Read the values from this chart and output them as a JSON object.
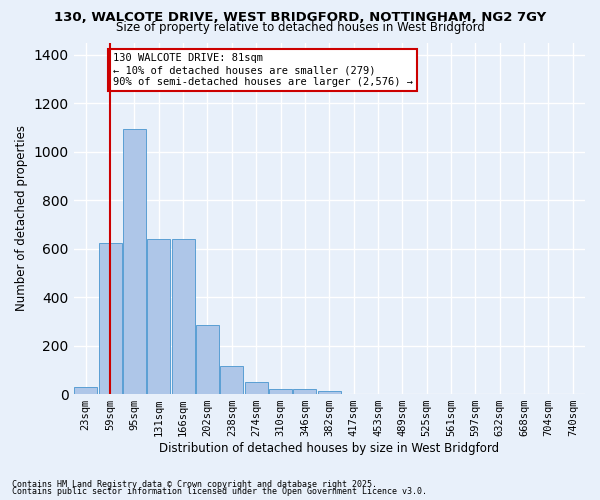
{
  "title1": "130, WALCOTE DRIVE, WEST BRIDGFORD, NOTTINGHAM, NG2 7GY",
  "title2": "Size of property relative to detached houses in West Bridgford",
  "xlabel": "Distribution of detached houses by size in West Bridgford",
  "ylabel": "Number of detached properties",
  "bins": [
    "23sqm",
    "59sqm",
    "95sqm",
    "131sqm",
    "166sqm",
    "202sqm",
    "238sqm",
    "274sqm",
    "310sqm",
    "346sqm",
    "382sqm",
    "417sqm",
    "453sqm",
    "489sqm",
    "525sqm",
    "561sqm",
    "597sqm",
    "632sqm",
    "668sqm",
    "704sqm",
    "740sqm"
  ],
  "bar_heights": [
    30,
    625,
    1095,
    640,
    640,
    285,
    115,
    48,
    20,
    20,
    12,
    0,
    0,
    0,
    0,
    0,
    0,
    0,
    0,
    0,
    0
  ],
  "bar_color": "#aec6e8",
  "bar_edge_color": "#5a9fd4",
  "ylim": [
    0,
    1450
  ],
  "yticks": [
    0,
    200,
    400,
    600,
    800,
    1000,
    1200,
    1400
  ],
  "vline_x": 1.0,
  "vline_color": "#cc0000",
  "annotation_text": "130 WALCOTE DRIVE: 81sqm\n← 10% of detached houses are smaller (279)\n90% of semi-detached houses are larger (2,576) →",
  "annotation_box_color": "#ffffff",
  "annotation_border_color": "#cc0000",
  "bg_color": "#e8f0fa",
  "grid_color": "#ffffff",
  "footnote1": "Contains HM Land Registry data © Crown copyright and database right 2025.",
  "footnote2": "Contains public sector information licensed under the Open Government Licence v3.0."
}
